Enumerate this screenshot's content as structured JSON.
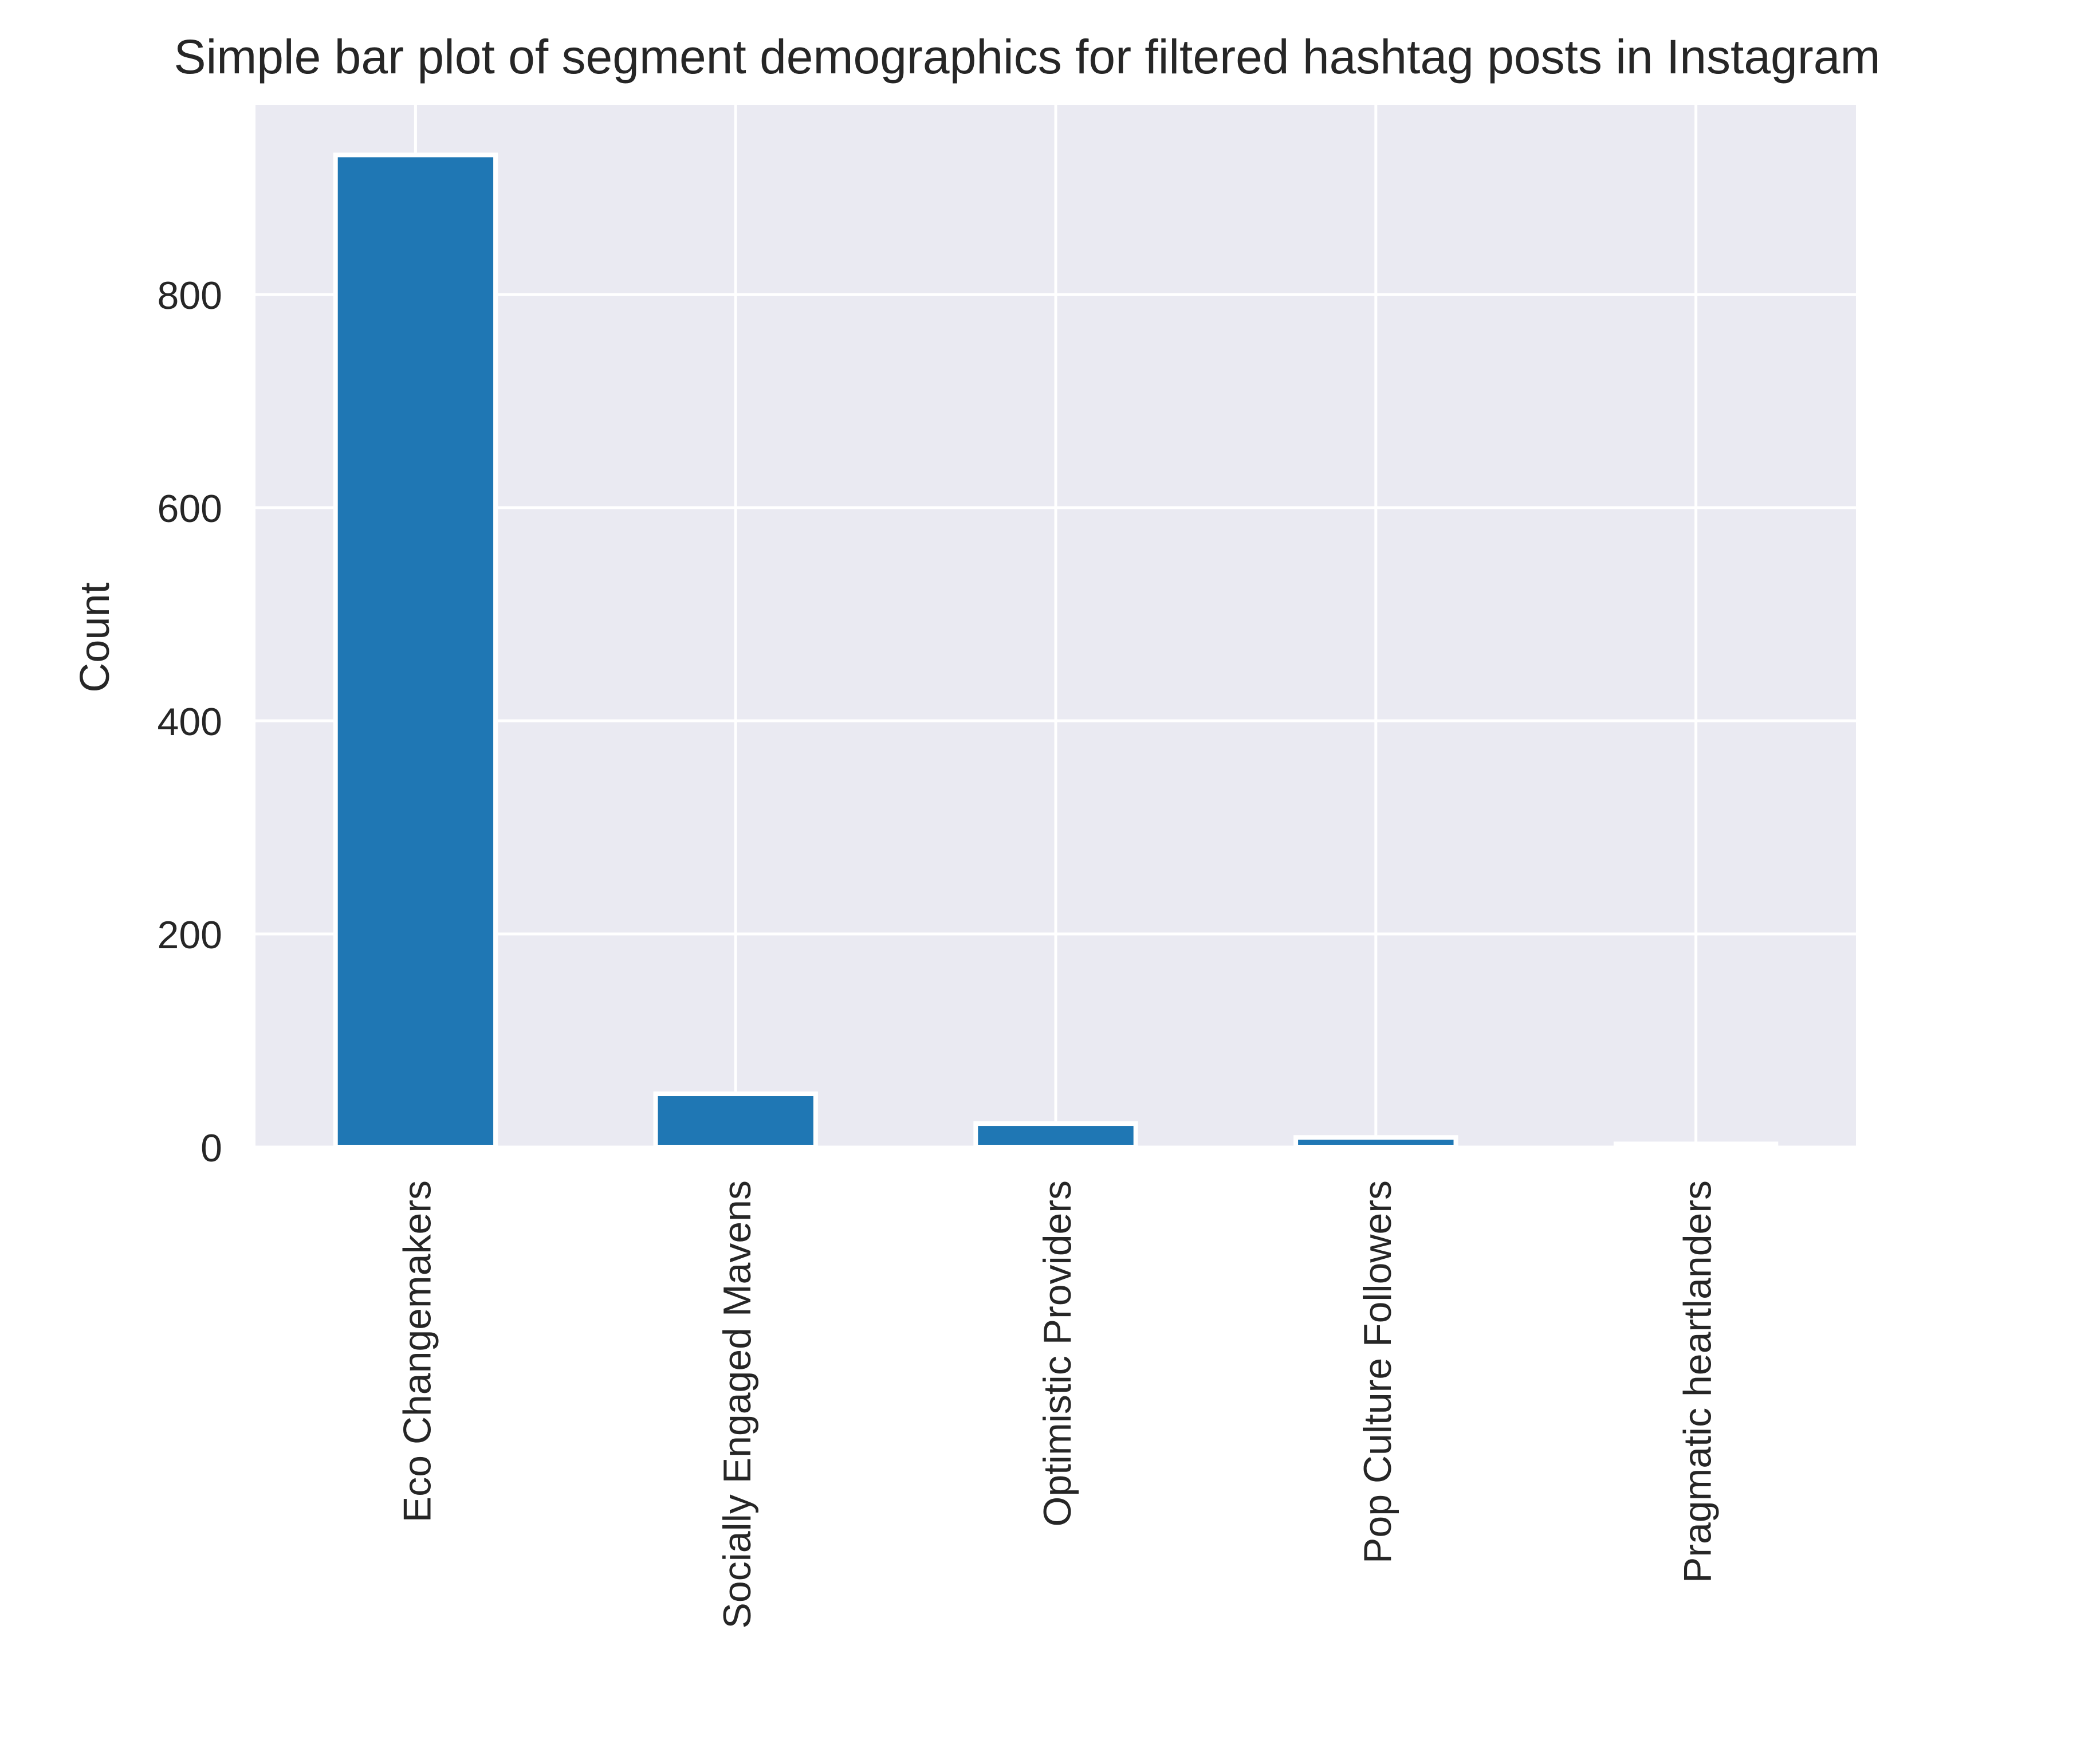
{
  "chart_data": {
    "type": "bar",
    "title": "Simple bar plot of segment demographics for filtered hashtag posts in Instagram",
    "xlabel": "",
    "ylabel": "Count",
    "categories": [
      "Eco Changemakers",
      "Socially Engaged Mavens",
      "Optimistic Providers",
      "Pop Culture Followers",
      "Pragmatic heartlanders"
    ],
    "values": [
      931,
      50,
      22,
      9,
      3
    ],
    "ylim": [
      0,
      978
    ],
    "yticks": [
      0,
      200,
      400,
      600,
      800
    ],
    "ytick_labels": [
      "0",
      "200",
      "400",
      "600",
      "800"
    ],
    "grid": true,
    "legend": "none",
    "colors": {
      "bar": "#1f77b4",
      "plot_background": "#eaeaf2",
      "grid": "#ffffff",
      "text": "#262626"
    }
  }
}
